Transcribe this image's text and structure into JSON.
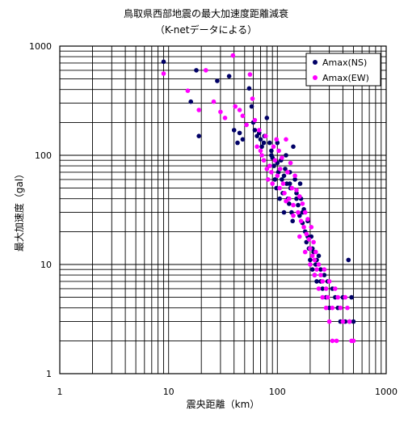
{
  "chart_data": {
    "type": "scatter",
    "title": "鳥取県西部地震の最大加速度距離減衰",
    "subtitle": "（K-netデータによる）",
    "xlabel": "震央距離（km）",
    "ylabel": "最大加速度（gal）",
    "x_scale": "log",
    "y_scale": "log",
    "xlim": [
      1,
      1000
    ],
    "ylim": [
      1,
      1000
    ],
    "x_ticks": [
      "1",
      "10",
      "100",
      "1000"
    ],
    "y_ticks": [
      "1",
      "10",
      "100",
      "1000"
    ],
    "grid": true,
    "legend_position": "top-right",
    "series": [
      {
        "name": "Amax(NS)",
        "color": "#000066",
        "points": [
          [
            9,
            720
          ],
          [
            18,
            600
          ],
          [
            16,
            310
          ],
          [
            19,
            150
          ],
          [
            28,
            480
          ],
          [
            36,
            530
          ],
          [
            40,
            170
          ],
          [
            43,
            130
          ],
          [
            45,
            160
          ],
          [
            48,
            140
          ],
          [
            55,
            410
          ],
          [
            58,
            280
          ],
          [
            60,
            200
          ],
          [
            62,
            170
          ],
          [
            65,
            150
          ],
          [
            70,
            140
          ],
          [
            72,
            120
          ],
          [
            76,
            150
          ],
          [
            80,
            220
          ],
          [
            85,
            130
          ],
          [
            88,
            110
          ],
          [
            90,
            95
          ],
          [
            93,
            80
          ],
          [
            95,
            60
          ],
          [
            98,
            50
          ],
          [
            100,
            130
          ],
          [
            102,
            70
          ],
          [
            105,
            40
          ],
          [
            108,
            90
          ],
          [
            110,
            60
          ],
          [
            112,
            45
          ],
          [
            115,
            30
          ],
          [
            118,
            75
          ],
          [
            120,
            100
          ],
          [
            122,
            55
          ],
          [
            125,
            40
          ],
          [
            128,
            36
          ],
          [
            130,
            70
          ],
          [
            132,
            50
          ],
          [
            135,
            30
          ],
          [
            138,
            25
          ],
          [
            140,
            120
          ],
          [
            145,
            60
          ],
          [
            150,
            45
          ],
          [
            155,
            35
          ],
          [
            160,
            28
          ],
          [
            162,
            55
          ],
          [
            165,
            40
          ],
          [
            170,
            24
          ],
          [
            175,
            32
          ],
          [
            180,
            20
          ],
          [
            185,
            16
          ],
          [
            190,
            25
          ],
          [
            195,
            14
          ],
          [
            200,
            11
          ],
          [
            205,
            18
          ],
          [
            210,
            9
          ],
          [
            215,
            13
          ],
          [
            220,
            8
          ],
          [
            225,
            10
          ],
          [
            230,
            7
          ],
          [
            240,
            12
          ],
          [
            250,
            9
          ],
          [
            260,
            6
          ],
          [
            270,
            8
          ],
          [
            280,
            5
          ],
          [
            290,
            7
          ],
          [
            300,
            4
          ],
          [
            320,
            6
          ],
          [
            340,
            5
          ],
          [
            360,
            4
          ],
          [
            380,
            3
          ],
          [
            400,
            5
          ],
          [
            420,
            3
          ],
          [
            450,
            11
          ],
          [
            460,
            3
          ],
          [
            480,
            5
          ],
          [
            500,
            3
          ],
          [
            250,
            7
          ],
          [
            230,
            11
          ],
          [
            210,
            14
          ],
          [
            190,
            18
          ],
          [
            170,
            30
          ],
          [
            150,
            40
          ],
          [
            130,
            55
          ],
          [
            115,
            65
          ],
          [
            100,
            85
          ],
          [
            88,
            100
          ],
          [
            75,
            130
          ],
          [
            68,
            160
          ]
        ]
      },
      {
        "name": "Amax(EW)",
        "color": "#ff00ff",
        "points": [
          [
            9,
            560
          ],
          [
            15,
            390
          ],
          [
            19,
            260
          ],
          [
            22,
            600
          ],
          [
            26,
            310
          ],
          [
            30,
            250
          ],
          [
            33,
            220
          ],
          [
            39,
            820
          ],
          [
            41,
            280
          ],
          [
            45,
            260
          ],
          [
            48,
            230
          ],
          [
            52,
            190
          ],
          [
            56,
            550
          ],
          [
            59,
            330
          ],
          [
            62,
            210
          ],
          [
            65,
            120
          ],
          [
            68,
            170
          ],
          [
            70,
            110
          ],
          [
            72,
            100
          ],
          [
            75,
            90
          ],
          [
            78,
            150
          ],
          [
            82,
            60
          ],
          [
            85,
            80
          ],
          [
            88,
            70
          ],
          [
            92,
            120
          ],
          [
            95,
            90
          ],
          [
            98,
            140
          ],
          [
            100,
            65
          ],
          [
            103,
            110
          ],
          [
            106,
            75
          ],
          [
            110,
            95
          ],
          [
            113,
            55
          ],
          [
            116,
            45
          ],
          [
            120,
            140
          ],
          [
            124,
            70
          ],
          [
            128,
            40
          ],
          [
            132,
            85
          ],
          [
            136,
            50
          ],
          [
            140,
            35
          ],
          [
            145,
            65
          ],
          [
            150,
            48
          ],
          [
            155,
            30
          ],
          [
            160,
            42
          ],
          [
            165,
            25
          ],
          [
            170,
            36
          ],
          [
            175,
            22
          ],
          [
            180,
            30
          ],
          [
            185,
            19
          ],
          [
            190,
            26
          ],
          [
            195,
            17
          ],
          [
            200,
            14
          ],
          [
            205,
            22
          ],
          [
            210,
            12
          ],
          [
            215,
            16
          ],
          [
            220,
            11
          ],
          [
            225,
            13
          ],
          [
            230,
            9
          ],
          [
            240,
            10
          ],
          [
            250,
            8
          ],
          [
            260,
            7
          ],
          [
            270,
            9
          ],
          [
            280,
            6
          ],
          [
            290,
            5
          ],
          [
            300,
            7
          ],
          [
            320,
            4
          ],
          [
            340,
            6
          ],
          [
            360,
            5
          ],
          [
            380,
            4
          ],
          [
            400,
            3
          ],
          [
            420,
            5
          ],
          [
            440,
            4
          ],
          [
            460,
            3
          ],
          [
            480,
            2
          ],
          [
            500,
            2
          ],
          [
            260,
            5
          ],
          [
            280,
            4
          ],
          [
            300,
            3
          ],
          [
            320,
            2
          ],
          [
            350,
            2
          ],
          [
            240,
            6
          ],
          [
            220,
            8
          ],
          [
            200,
            10
          ],
          [
            180,
            13
          ],
          [
            160,
            18
          ],
          [
            140,
            28
          ],
          [
            120,
            38
          ],
          [
            105,
            50
          ],
          [
            90,
            55
          ],
          [
            80,
            75
          ]
        ]
      }
    ]
  }
}
